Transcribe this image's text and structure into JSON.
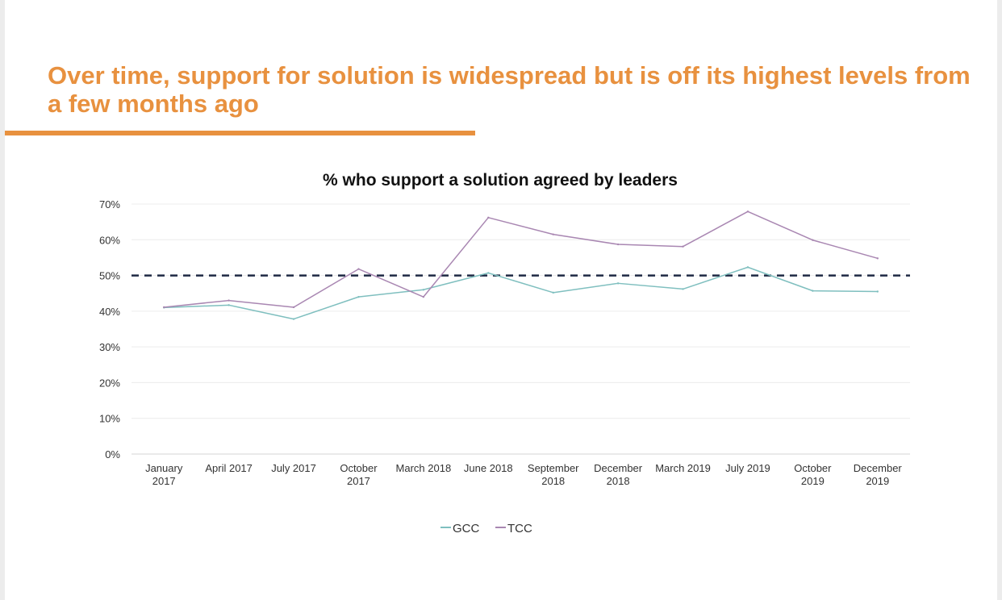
{
  "slide": {
    "headline": "Over time, support for solution is widespread but is off its highest levels from a few months ago"
  },
  "chart_data": {
    "type": "line",
    "title": "% who support a solution agreed by leaders",
    "xlabel": "",
    "ylabel": "",
    "categories": [
      [
        "January",
        "2017"
      ],
      [
        "April 2017"
      ],
      [
        "July 2017"
      ],
      [
        "October",
        "2017"
      ],
      [
        "March 2018"
      ],
      [
        "June 2018"
      ],
      [
        "September",
        "2018"
      ],
      [
        "December",
        "2018"
      ],
      [
        "March 2019"
      ],
      [
        "July 2019"
      ],
      [
        "October",
        "2019"
      ],
      [
        "December",
        "2019"
      ]
    ],
    "y_ticks": [
      "0%",
      "10%",
      "20%",
      "30%",
      "40%",
      "50%",
      "60%",
      "70%"
    ],
    "ylim": [
      0,
      70
    ],
    "grid": true,
    "reference_line": {
      "value": 50,
      "style": "dashed",
      "color": "#1f2a44"
    },
    "series": [
      {
        "name": "GCC",
        "color": "#7fbfbf",
        "values": [
          41,
          41.7,
          37.8,
          44,
          46,
          50.7,
          45.2,
          47.8,
          46.2,
          52.3,
          45.7,
          45.5
        ]
      },
      {
        "name": "TCC",
        "color": "#a987b2",
        "values": [
          41.1,
          43,
          41.1,
          51.8,
          44,
          66.2,
          61.5,
          58.7,
          58.1,
          67.9,
          59.9,
          54.8
        ]
      }
    ],
    "legend": {
      "position": "bottom"
    }
  }
}
